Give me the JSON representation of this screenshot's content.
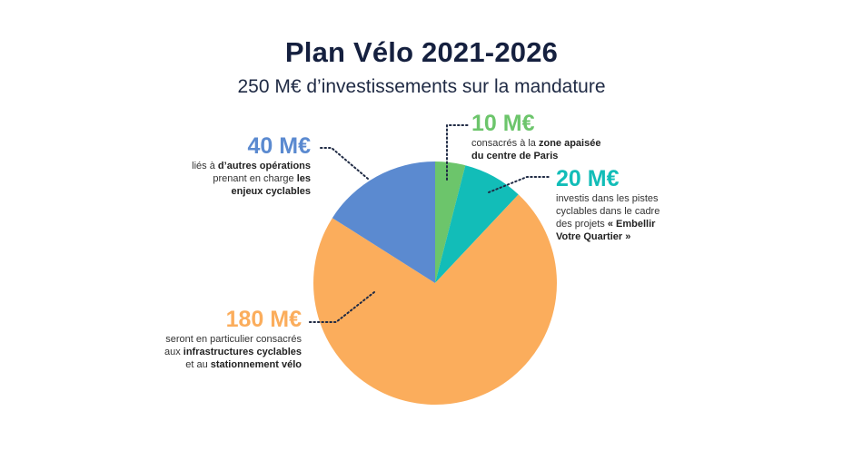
{
  "title": "Plan Vélo 2021-2026",
  "subtitle": "250 M€ d’investissements sur la mandature",
  "chart_data": {
    "type": "pie",
    "total": 250,
    "unit": "M€",
    "slices": [
      {
        "amount_label": "10 M€",
        "value": 10,
        "color": "#6cc56b",
        "desc": [
          {
            "t": "consacrés à la ",
            "b": false
          },
          {
            "t": "zone apaisée",
            "b": true
          },
          {
            "br": true
          },
          {
            "t": "du centre de Paris",
            "b": true
          }
        ]
      },
      {
        "amount_label": "20 M€",
        "value": 20,
        "color": "#12bdb8",
        "desc": [
          {
            "t": "investis dans les pistes",
            "b": false
          },
          {
            "br": true
          },
          {
            "t": "cyclables dans le cadre",
            "b": false
          },
          {
            "br": true
          },
          {
            "t": "des projets ",
            "b": false
          },
          {
            "t": "« Embellir",
            "b": true
          },
          {
            "br": true
          },
          {
            "t": "Votre Quartier »",
            "b": true
          }
        ]
      },
      {
        "amount_label": "180 M€",
        "value": 180,
        "color": "#fbad5c",
        "desc": [
          {
            "t": "seront en particulier consacrés",
            "b": false
          },
          {
            "br": true
          },
          {
            "t": "aux ",
            "b": false
          },
          {
            "t": "infrastructures cyclables",
            "b": true
          },
          {
            "br": true
          },
          {
            "t": "et au ",
            "b": false
          },
          {
            "t": "stationnement vélo",
            "b": true
          }
        ]
      },
      {
        "amount_label": "40 M€",
        "value": 40,
        "color": "#5b8ad0",
        "desc": [
          {
            "t": "liés à ",
            "b": false
          },
          {
            "t": "d’autres opérations",
            "b": true
          },
          {
            "br": true
          },
          {
            "t": "prenant en charge ",
            "b": false
          },
          {
            "t": "les",
            "b": true
          },
          {
            "br": true
          },
          {
            "t": "enjeux cyclables",
            "b": true
          }
        ]
      }
    ]
  }
}
